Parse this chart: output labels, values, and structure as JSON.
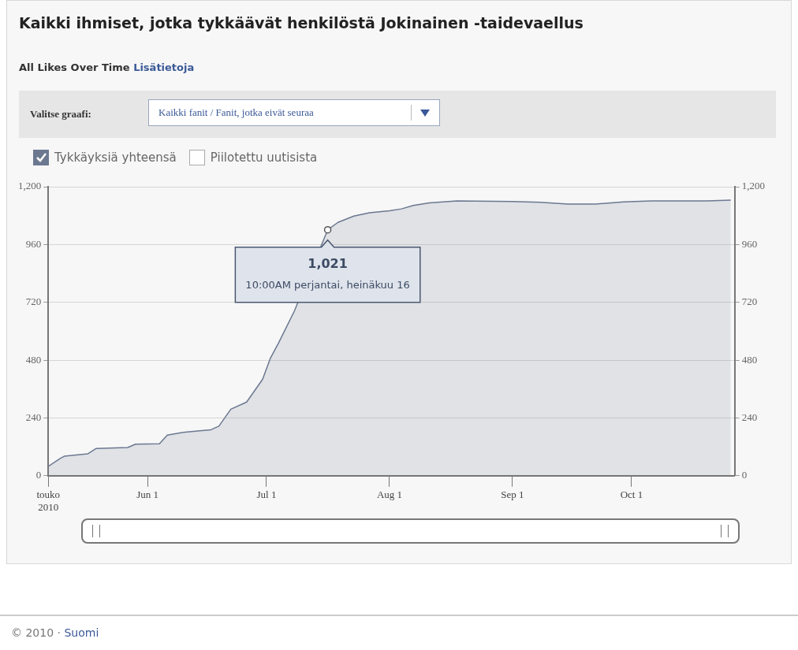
{
  "chart_data": {
    "type": "area",
    "title": "Kaikki ihmiset, jotka tykkäävät henkilöstä Jokinainen -taidevaellus",
    "subtitle": "All Likes Over Time",
    "x": [
      "2010-05-07",
      "2010-05-10",
      "2010-05-11",
      "2010-05-17",
      "2010-05-19",
      "2010-05-27",
      "2010-05-29",
      "2010-06-04",
      "2010-06-06",
      "2010-06-10",
      "2010-06-17",
      "2010-06-19",
      "2010-06-22",
      "2010-06-26",
      "2010-06-30",
      "2010-07-02",
      "2010-07-04",
      "2010-07-08",
      "2010-07-15",
      "2010-07-16T10:00",
      "2010-07-19",
      "2010-07-23",
      "2010-07-27",
      "2010-08-01",
      "2010-08-04",
      "2010-08-07",
      "2010-08-11",
      "2010-08-18",
      "2010-09-01",
      "2010-09-08",
      "2010-09-15",
      "2010-09-22",
      "2010-09-29",
      "2010-10-06",
      "2010-10-20",
      "2010-10-26"
    ],
    "series": [
      {
        "name": "Tykkäyksiä yhteensä",
        "color": "#6b7890",
        "values": [
          39,
          72,
          81,
          91,
          113,
          117,
          131,
          133,
          169,
          180,
          191,
          206,
          276,
          306,
          400,
          489,
          550,
          683,
          null,
          1021,
          1052,
          1078,
          1092,
          1100,
          1108,
          1122,
          1133,
          1141,
          1139,
          1135,
          1128,
          1128,
          1137,
          1141,
          1141,
          1144
        ]
      }
    ],
    "xlim": [
      "2010-05-07",
      "2010-10-27"
    ],
    "xticks": [
      {
        "value": "2010-05-07",
        "label": "touko 2010"
      },
      {
        "value": "2010-06-01",
        "label": "Jun 1"
      },
      {
        "value": "2010-07-01",
        "label": "Jul 1"
      },
      {
        "value": "2010-08-01",
        "label": "Aug 1"
      },
      {
        "value": "2010-09-01",
        "label": "Sep 1"
      },
      {
        "value": "2010-10-01",
        "label": "Oct 1"
      }
    ],
    "ylim": [
      0,
      1200
    ],
    "yticks": [
      0,
      240,
      480,
      720,
      960,
      {
        "value": 1200,
        "label": "1,200"
      }
    ],
    "y2lim": [
      0,
      1200
    ],
    "y2ticks": [
      0,
      240,
      480,
      720,
      960,
      {
        "value": 1200,
        "label": "1,200"
      }
    ],
    "grid": "y",
    "legend": "top left",
    "marker": "none",
    "line_style": "solid",
    "annotations": [
      "Lisätietoja",
      "Valitse graafi:",
      "Kaikki fanit / Fanit, jotka eivät seuraa",
      "Piilotettu uutisista",
      "© 2010 · Suomi",
      {
        "text": "1,021\n10:00AM perjantai, heinäkuu 16",
        "x": "2010-07-16T10:00",
        "y": 1021
      }
    ]
  }
}
